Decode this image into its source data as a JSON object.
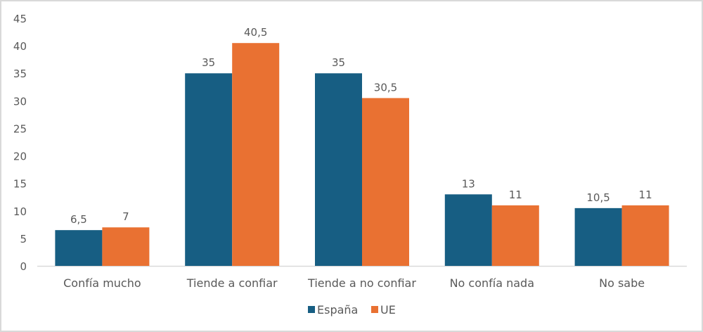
{
  "chart_data": {
    "type": "bar",
    "title": "",
    "xlabel": "",
    "ylabel": "",
    "categories": [
      "Confía mucho",
      "Tiende a confiar",
      "Tiende a no confiar",
      "No confía nada",
      "No sabe"
    ],
    "series": [
      {
        "name": "España",
        "color": "#175e83",
        "values": [
          6.5,
          35,
          35,
          13,
          10.5
        ],
        "labels": [
          "6,5",
          "35",
          "35",
          "13",
          "10,5"
        ]
      },
      {
        "name": "UE",
        "color": "#e97132",
        "values": [
          7,
          40.5,
          30.5,
          11,
          11
        ],
        "labels": [
          "7",
          "40,5",
          "30,5",
          "11",
          "11"
        ]
      }
    ],
    "ylim": [
      0,
      45
    ],
    "yticks": [
      0,
      5,
      10,
      15,
      20,
      25,
      30,
      35,
      40,
      45
    ],
    "grid": false,
    "legend": "bottom"
  }
}
